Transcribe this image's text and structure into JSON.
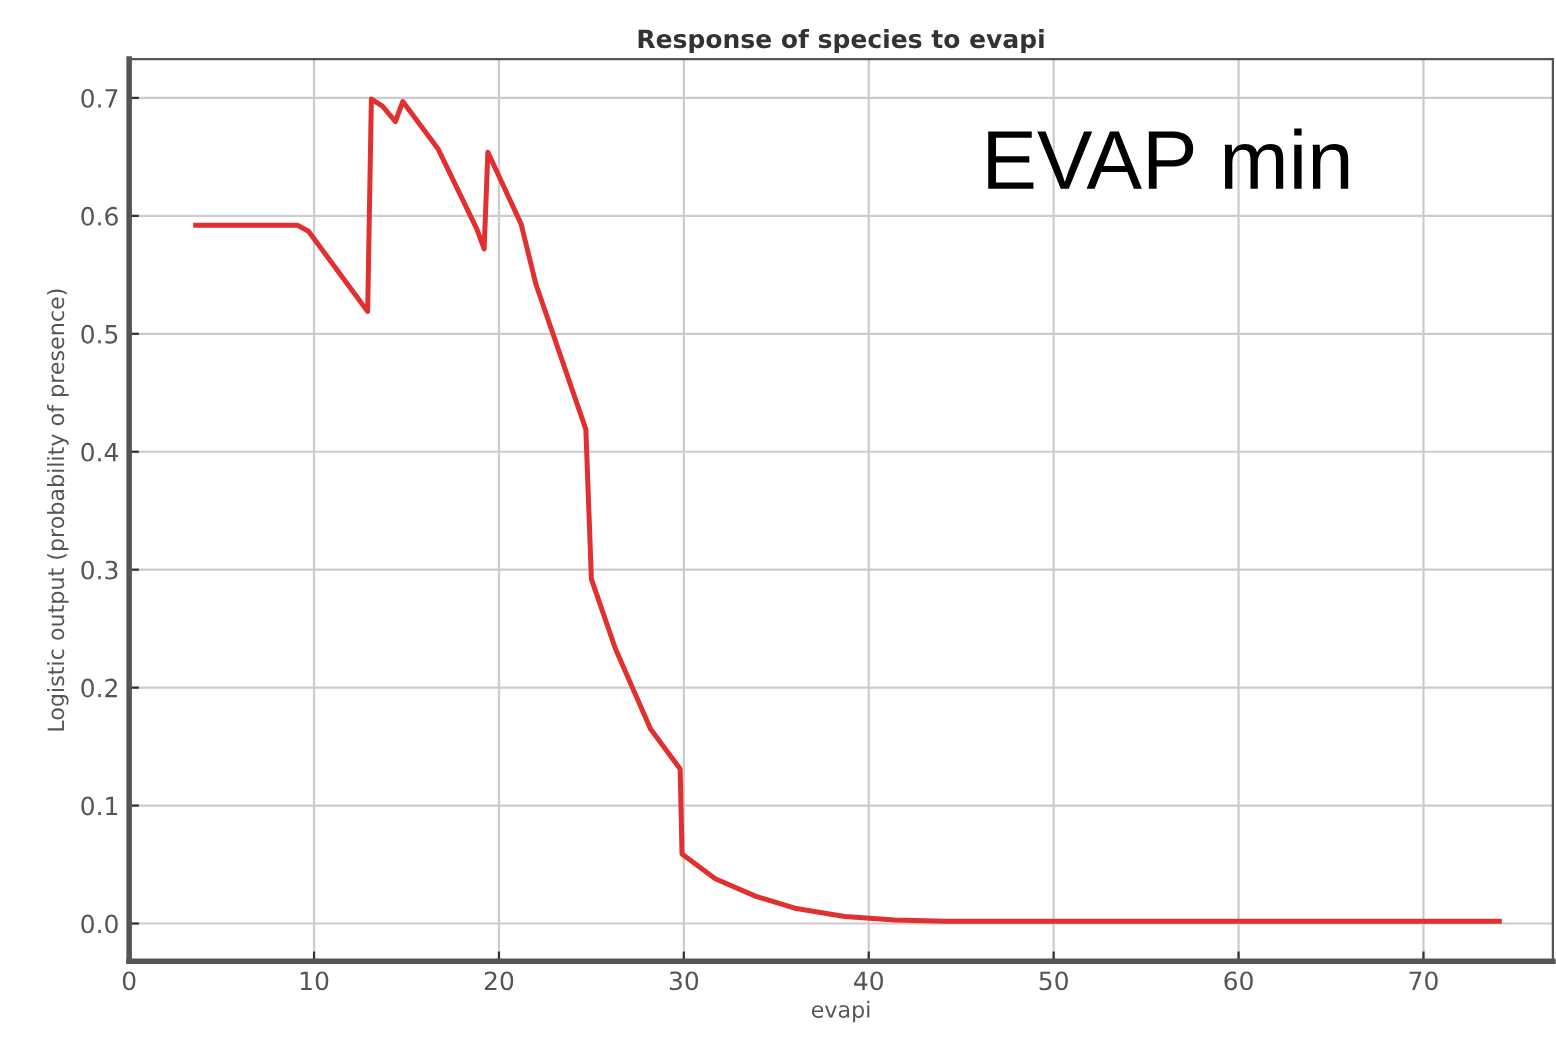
{
  "chart_data": {
    "type": "line",
    "title": "Response of species to evapi",
    "xlabel": "evapi",
    "ylabel": "Logistic output (probability of presence)",
    "annotations": [
      "EVAP min"
    ],
    "series": [
      {
        "color": "#e03030",
        "x": [
          3.6,
          9.1,
          9.7,
          12.9,
          13.1,
          13.7,
          14.4,
          14.8,
          16.7,
          18.8,
          19.2,
          19.4,
          21.2,
          22.0,
          24.7,
          25.0,
          26.3,
          28.2,
          29.8,
          29.9,
          31.7,
          33.9,
          36.0,
          38.7,
          41.4,
          44.1,
          74.1
        ],
        "values": [
          0.592,
          0.592,
          0.587,
          0.519,
          0.699,
          0.693,
          0.68,
          0.697,
          0.657,
          0.589,
          0.572,
          0.654,
          0.593,
          0.542,
          0.419,
          0.292,
          0.233,
          0.165,
          0.131,
          0.059,
          0.038,
          0.023,
          0.013,
          0.006,
          0.003,
          0.002,
          0.002
        ]
      }
    ],
    "xlim": [
      0,
      77
    ],
    "ylim": [
      -0.032,
      0.733
    ],
    "xticks": [
      0,
      10,
      20,
      30,
      40,
      50,
      60,
      70
    ],
    "yticks": [
      {
        "value": 0,
        "label": "0.0"
      },
      0.1,
      0.2,
      0.3,
      0.4,
      0.5,
      0.6,
      0.7
    ],
    "grid": true,
    "legend": false,
    "marker": "none",
    "line_style": "solid"
  }
}
